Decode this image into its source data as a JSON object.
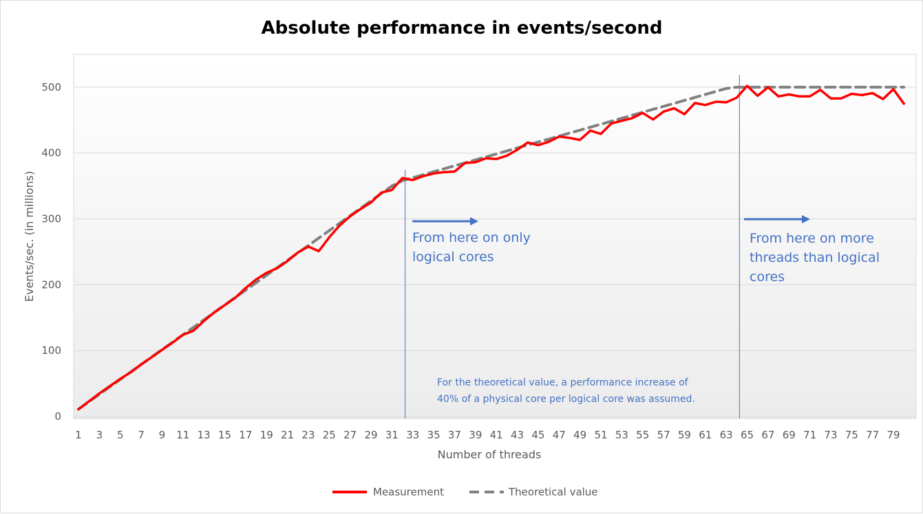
{
  "chart_data": {
    "type": "line",
    "title": "Absolute performance in events/second",
    "xlabel": "Number of threads",
    "ylabel": "Events/sec. (in millions)",
    "ylim": [
      0,
      550
    ],
    "yticks": [
      0,
      100,
      200,
      300,
      400,
      500
    ],
    "x": [
      1,
      2,
      3,
      4,
      5,
      6,
      7,
      8,
      9,
      10,
      11,
      12,
      13,
      14,
      15,
      16,
      17,
      18,
      19,
      20,
      21,
      22,
      23,
      24,
      25,
      26,
      27,
      28,
      29,
      30,
      31,
      32,
      33,
      34,
      35,
      36,
      37,
      38,
      39,
      40,
      41,
      42,
      43,
      44,
      45,
      46,
      47,
      48,
      49,
      50,
      51,
      52,
      53,
      54,
      55,
      56,
      57,
      58,
      59,
      60,
      61,
      62,
      63,
      64,
      65,
      66,
      67,
      68,
      69,
      70,
      71,
      72,
      73,
      74,
      75,
      76,
      77,
      78,
      79,
      80
    ],
    "xtick_labels": [
      "1",
      "3",
      "5",
      "7",
      "9",
      "11",
      "13",
      "15",
      "17",
      "19",
      "21",
      "23",
      "25",
      "27",
      "29",
      "31",
      "33",
      "35",
      "37",
      "39",
      "41",
      "43",
      "45",
      "47",
      "49",
      "51",
      "53",
      "55",
      "57",
      "59",
      "61",
      "63",
      "65",
      "67",
      "69",
      "71",
      "73",
      "75",
      "77",
      "79"
    ],
    "series": [
      {
        "name": "Measurement",
        "color": "#ff0000",
        "style": "solid",
        "values": [
          11,
          23,
          35,
          46,
          57,
          67,
          79,
          90,
          101,
          112,
          124,
          130,
          145,
          158,
          169,
          180,
          195,
          208,
          218,
          225,
          236,
          249,
          258,
          251,
          272,
          290,
          304,
          315,
          325,
          340,
          344,
          362,
          359,
          365,
          369,
          371,
          372,
          385,
          386,
          392,
          391,
          396,
          405,
          416,
          412,
          417,
          425,
          423,
          420,
          434,
          429,
          445,
          449,
          453,
          461,
          451,
          463,
          468,
          459,
          476,
          473,
          478,
          477,
          484,
          502,
          487,
          500,
          486,
          489,
          486,
          486,
          496,
          483,
          483,
          490,
          488,
          491,
          482,
          497,
          475
        ]
      },
      {
        "name": "Theoretical value",
        "color": "#808080",
        "style": "dashed",
        "values": [
          11,
          22.3,
          33.6,
          44.9,
          56.2,
          67.5,
          78.8,
          90.1,
          101.4,
          112.7,
          124,
          135.3,
          146.6,
          157.9,
          169.2,
          180.5,
          191.8,
          203.1,
          214.4,
          225.7,
          237,
          248.3,
          259.6,
          270.9,
          282.2,
          293.5,
          304.8,
          316.1,
          327.4,
          338.7,
          350,
          358,
          362.5,
          367,
          371.6,
          376.1,
          380.6,
          385.1,
          389.6,
          394.1,
          398.7,
          403.2,
          407.7,
          412.2,
          416.7,
          421.2,
          425.8,
          430.3,
          434.8,
          439.3,
          443.8,
          448.3,
          452.9,
          457.4,
          461.9,
          466.4,
          470.9,
          475.4,
          480,
          484.5,
          489,
          493.5,
          498,
          500,
          500,
          500,
          500,
          500,
          500,
          500,
          500,
          500,
          500,
          500,
          500,
          500,
          500,
          500,
          500,
          500
        ]
      }
    ],
    "markers": [
      {
        "x": 32,
        "color": "#4472c4"
      },
      {
        "x": 64,
        "color": "#4472c4"
      }
    ],
    "annotations": {
      "logical": [
        "From here on only",
        "logical cores"
      ],
      "more": [
        "From here on more",
        "threads than logical",
        "cores"
      ],
      "note": [
        "For the theoretical value, a performance increase of",
        "40% of a physical core per logical core was assumed."
      ]
    },
    "legend_position": "bottom",
    "grid": true
  }
}
